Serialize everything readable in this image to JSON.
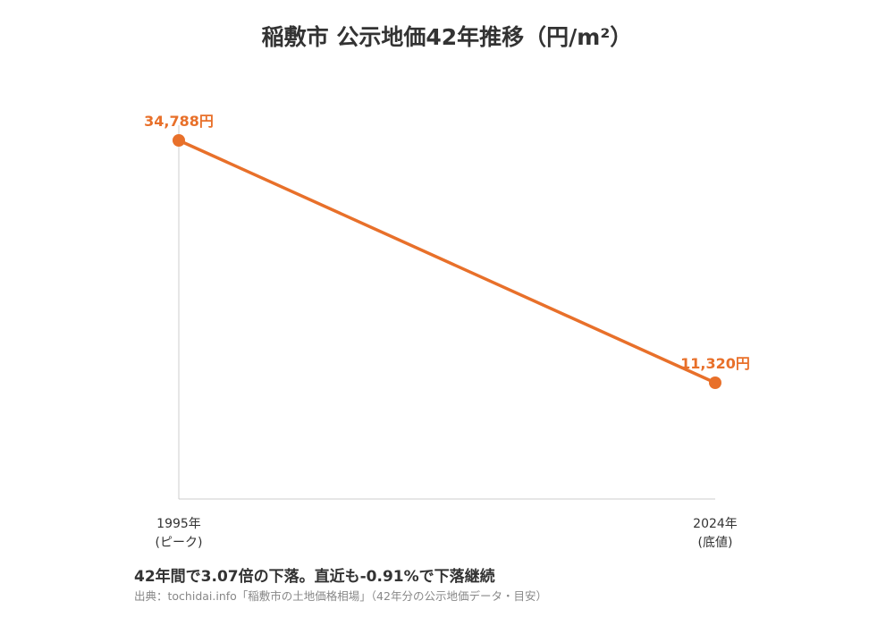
{
  "chart_data": {
    "type": "line",
    "title": "稲敷市 公示地価42年推移（円/m²）",
    "x": [
      "1995年",
      "2024年"
    ],
    "x_sublabels": [
      "(ピーク)",
      "(底値)"
    ],
    "series": [
      {
        "values": [
          34788,
          11320
        ],
        "color": "#e8702a"
      }
    ],
    "data_labels": [
      "34,788円",
      "11,320円"
    ],
    "xlabel": "",
    "ylabel": "",
    "grid": false,
    "legend": "none"
  },
  "footer": {
    "summary": "42年間で3.07倍の下落。直近も-0.91%で下落継続",
    "source": "出典：tochidai.info「稲敷市の土地価格相場」（42年分の公示地価データ・目安）"
  },
  "colors": {
    "line": "#e8702a",
    "axis": "#cccccc",
    "text": "#333333",
    "source": "#888888"
  }
}
